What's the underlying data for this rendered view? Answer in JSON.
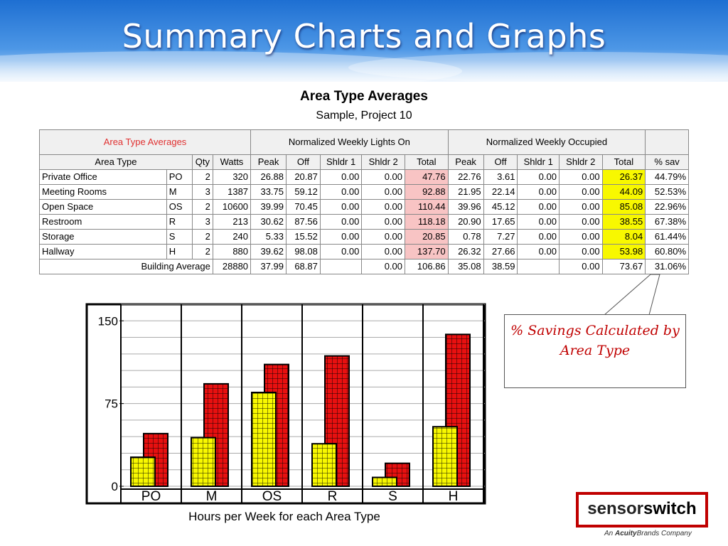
{
  "slide": {
    "title": "Summary Charts and Graphs",
    "heading": "Area Type Averages",
    "subheading": "Sample, Project 10",
    "callout": "% Savings Calculated by Area Type",
    "logo_text": "sensorswitch",
    "logo_sub": "An AcuityBrands Company"
  },
  "table": {
    "group_headers": [
      "Area Type Averages",
      "Normalized Weekly Lights On",
      "Normalized Weekly Occupied"
    ],
    "columns": [
      "Area Type",
      "Qty",
      "Watts",
      "Peak",
      "Off",
      "Shldr 1",
      "Shldr 2",
      "Total",
      "Peak",
      "Off",
      "Shldr 1",
      "Shldr 2",
      "Total",
      "% sav"
    ],
    "rows": [
      [
        "Private Office",
        "PO",
        "2",
        "320",
        "26.88",
        "20.87",
        "0.00",
        "0.00",
        "47.76",
        "22.76",
        "3.61",
        "0.00",
        "0.00",
        "26.37",
        "44.79%"
      ],
      [
        "Meeting Rooms",
        "M",
        "3",
        "1387",
        "33.75",
        "59.12",
        "0.00",
        "0.00",
        "92.88",
        "21.95",
        "22.14",
        "0.00",
        "0.00",
        "44.09",
        "52.53%"
      ],
      [
        "Open Space",
        "OS",
        "2",
        "10600",
        "39.99",
        "70.45",
        "0.00",
        "0.00",
        "110.44",
        "39.96",
        "45.12",
        "0.00",
        "0.00",
        "85.08",
        "22.96%"
      ],
      [
        "Restroom",
        "R",
        "3",
        "213",
        "30.62",
        "87.56",
        "0.00",
        "0.00",
        "118.18",
        "20.90",
        "17.65",
        "0.00",
        "0.00",
        "38.55",
        "67.38%"
      ],
      [
        "Storage",
        "S",
        "2",
        "240",
        "5.33",
        "15.52",
        "0.00",
        "0.00",
        "20.85",
        "0.78",
        "7.27",
        "0.00",
        "0.00",
        "8.04",
        "61.44%"
      ],
      [
        "Hallway",
        "H",
        "2",
        "880",
        "39.62",
        "98.08",
        "0.00",
        "0.00",
        "137.70",
        "26.32",
        "27.66",
        "0.00",
        "0.00",
        "53.98",
        "60.80%"
      ]
    ],
    "footer": [
      "Building Average",
      "28880",
      "37.99",
      "68.87",
      "",
      "0.00",
      "106.86",
      "35.08",
      "38.59",
      "",
      "0.00",
      "73.67",
      "31.06%"
    ]
  },
  "chart_data": {
    "type": "bar",
    "title": "Hours per Week for each Area Type",
    "categories": [
      "PO",
      "M",
      "OS",
      "R",
      "S",
      "H"
    ],
    "series": [
      {
        "values": [
          26.37,
          44.09,
          85.08,
          38.55,
          8.04,
          53.98
        ],
        "color": "#f8f800"
      },
      {
        "values": [
          47.76,
          92.88,
          110.44,
          118.18,
          20.85,
          137.7
        ],
        "color": "#e81010"
      }
    ],
    "yticks": [
      "0",
      "75",
      "150"
    ],
    "ylim": [
      0,
      165
    ],
    "grid": true
  }
}
